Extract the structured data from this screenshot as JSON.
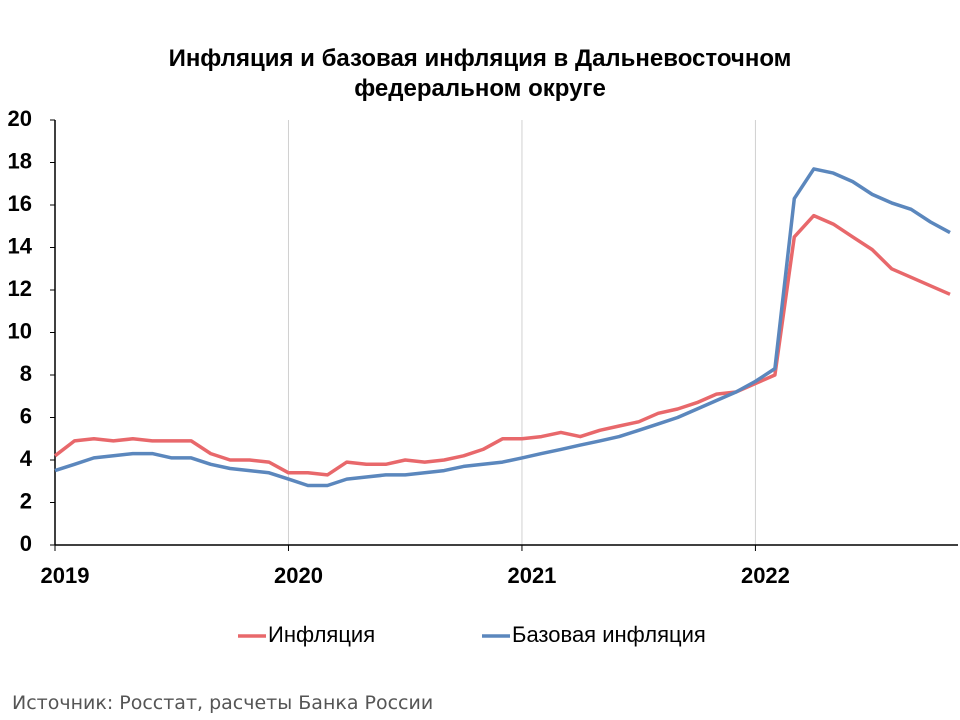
{
  "chart_data": {
    "type": "line",
    "title": "Инфляция и базовая инфляция в Дальневосточном федеральном округе",
    "categories": [
      "2019",
      null,
      null,
      null,
      null,
      null,
      null,
      null,
      null,
      null,
      null,
      null,
      "2020",
      null,
      null,
      null,
      null,
      null,
      null,
      null,
      null,
      null,
      null,
      null,
      "2021",
      null,
      null,
      null,
      null,
      null,
      null,
      null,
      null,
      null,
      null,
      null,
      "2022",
      null,
      null,
      null,
      null,
      null,
      null,
      null,
      null,
      null,
      null
    ],
    "series": [
      {
        "name": "Инфляция",
        "color": "#e8686b",
        "values": [
          4.2,
          4.9,
          5.0,
          4.9,
          5.0,
          4.9,
          4.9,
          4.9,
          4.3,
          4.0,
          4.0,
          3.9,
          3.4,
          3.4,
          3.3,
          3.9,
          3.8,
          3.8,
          4.0,
          3.9,
          4.0,
          4.2,
          4.5,
          5.0,
          5.0,
          5.1,
          5.3,
          5.1,
          5.4,
          5.6,
          5.8,
          6.2,
          6.4,
          6.7,
          7.1,
          7.2,
          7.6,
          8.0,
          14.5,
          15.5,
          15.1,
          14.5,
          13.9,
          13.0,
          12.6,
          12.2,
          11.8
        ]
      },
      {
        "name": "Базовая инфляция",
        "color": "#5b87bd",
        "values": [
          3.5,
          3.8,
          4.1,
          4.2,
          4.3,
          4.3,
          4.1,
          4.1,
          3.8,
          3.6,
          3.5,
          3.4,
          3.1,
          2.8,
          2.8,
          3.1,
          3.2,
          3.3,
          3.3,
          3.4,
          3.5,
          3.7,
          3.8,
          3.9,
          4.1,
          4.3,
          4.5,
          4.7,
          4.9,
          5.1,
          5.4,
          5.7,
          6.0,
          6.4,
          6.8,
          7.2,
          7.7,
          8.3,
          16.3,
          17.7,
          17.5,
          17.1,
          16.5,
          16.1,
          15.8,
          15.2,
          14.7
        ]
      }
    ],
    "ylim": [
      0,
      20
    ],
    "yticks": [
      0,
      2,
      4,
      6,
      8,
      10,
      12,
      14,
      16,
      18,
      20
    ],
    "grid": "x",
    "legend": "bottom",
    "source": "Источник: Росстат, расчеты Банка России"
  }
}
